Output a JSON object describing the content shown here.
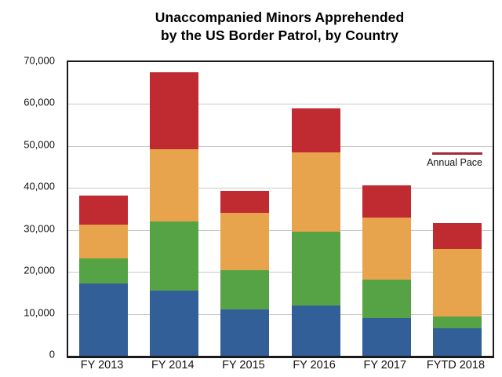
{
  "title": {
    "line1": "Unaccompanied Minors Apprehended",
    "line2": "by the US Border Patrol, by Country"
  },
  "chart_data": {
    "type": "bar",
    "stacked": true,
    "title": "Unaccompanied Minors Apprehended by the US Border Patrol, by Country",
    "xlabel": "",
    "ylabel": "",
    "categories": [
      "FY 2013",
      "FY 2014",
      "FY 2015",
      "FY 2016",
      "FY 2017",
      "FYTD 2018"
    ],
    "series": [
      {
        "name": "blue-bottom-segment",
        "color": "#325F97",
        "values": [
          17300,
          15600,
          11000,
          11900,
          8900,
          6600
        ]
      },
      {
        "name": "green-segment",
        "color": "#56A345",
        "values": [
          6000,
          16500,
          9400,
          17700,
          9300,
          2700
        ]
      },
      {
        "name": "orange-segment",
        "color": "#E8A44D",
        "values": [
          8000,
          17200,
          13600,
          18900,
          14800,
          16100
        ]
      },
      {
        "name": "red-top-segment",
        "color": "#BF2B31",
        "values": [
          6800,
          18200,
          5400,
          10400,
          7700,
          6300
        ]
      }
    ],
    "totals": [
      38100,
      67500,
      39400,
      58900,
      40700,
      31700
    ],
    "ylim": [
      0,
      70000
    ],
    "yticks": [
      {
        "value": 0,
        "label": "0"
      },
      {
        "value": 10000,
        "label": "10,000"
      },
      {
        "value": 20000,
        "label": "20,000"
      },
      {
        "value": 30000,
        "label": "30,000"
      },
      {
        "value": 40000,
        "label": "40,000"
      },
      {
        "value": 50000,
        "label": "50,000"
      },
      {
        "value": 60000,
        "label": "60,000"
      },
      {
        "value": 70000,
        "label": "70,000"
      }
    ],
    "grid": "horizontal",
    "legend_position": "inside-right",
    "annotation": {
      "label": "Annual Pace",
      "value": 48500,
      "category": "FYTD 2018",
      "color": "#A12B33"
    },
    "colors": {
      "axis": "#1a1a1a",
      "gridline": "#c9c9c9",
      "background": "#ffffff"
    }
  }
}
